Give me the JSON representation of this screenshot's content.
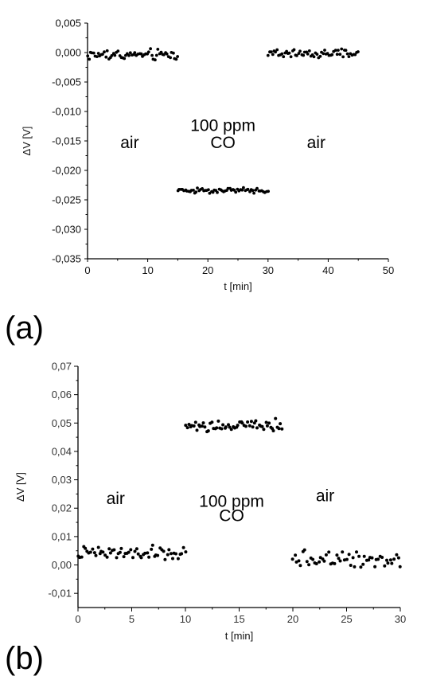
{
  "chart_data": [
    {
      "panel": "(a)",
      "type": "scatter",
      "xlabel": "t [min]",
      "ylabel": "ΔV [V]",
      "xlim": [
        0,
        50
      ],
      "ylim": [
        -0.035,
        0.005
      ],
      "x_ticks": [
        0,
        10,
        20,
        30,
        40,
        50
      ],
      "y_ticks": [
        0.005,
        0.0,
        -0.005,
        -0.01,
        -0.015,
        -0.02,
        -0.025,
        -0.03,
        -0.035
      ],
      "x_tick_labels": [
        "0",
        "10",
        "20",
        "30",
        "40",
        "50"
      ],
      "y_tick_labels": [
        "0,005",
        "0,000",
        "-0,005",
        "-0,010",
        "-0,015",
        "-0,020",
        "-0,025",
        "-0,030",
        "-0,035"
      ],
      "annotations": [
        {
          "text": "air",
          "x": 7,
          "y": -0.0162
        },
        {
          "text": "100 ppm",
          "x": 22.5,
          "y": -0.0133
        },
        {
          "text": "CO",
          "x": 22.5,
          "y": -0.0162
        },
        {
          "text": "air",
          "x": 38,
          "y": -0.0162
        }
      ],
      "segments": [
        {
          "x_start": 0,
          "x_end": 15,
          "mean": -0.0004,
          "noise": 0.0014,
          "n": 60
        },
        {
          "x_start": 15,
          "x_end": 30,
          "mean": -0.0234,
          "noise": 0.0007,
          "n": 60
        },
        {
          "x_start": 30,
          "x_end": 45,
          "mean": -0.0002,
          "noise": 0.001,
          "n": 60
        }
      ]
    },
    {
      "panel": "(b)",
      "type": "scatter",
      "xlabel": "t [min]",
      "ylabel": "ΔV [V]",
      "xlim": [
        0,
        30
      ],
      "ylim": [
        -0.015,
        0.07
      ],
      "x_ticks": [
        0,
        5,
        10,
        15,
        20,
        25,
        30
      ],
      "y_ticks": [
        0.07,
        0.06,
        0.05,
        0.04,
        0.03,
        0.02,
        0.01,
        0.0,
        -0.01
      ],
      "x_tick_labels": [
        "0",
        "5",
        "10",
        "15",
        "20",
        "25",
        "30"
      ],
      "y_tick_labels": [
        "0,07",
        "0,06",
        "0,05",
        "0,04",
        "0,03",
        "0,02",
        "0,01",
        "0,00",
        "-0,01"
      ],
      "annotations": [
        {
          "text": "air",
          "x": 3.5,
          "y": 0.0215
        },
        {
          "text": "100 ppm",
          "x": 14.3,
          "y": 0.0205
        },
        {
          "text": "CO",
          "x": 14.3,
          "y": 0.0155
        },
        {
          "text": "air",
          "x": 23,
          "y": 0.0225
        }
      ],
      "segments": [
        {
          "x_start": 0,
          "x_end": 10,
          "mean": 0.004,
          "noise": 0.0035,
          "n": 60
        },
        {
          "x_start": 10,
          "x_end": 19,
          "mean": 0.049,
          "noise": 0.0035,
          "n": 60
        },
        {
          "x_start": 20,
          "x_end": 30,
          "mean": 0.002,
          "noise": 0.004,
          "n": 55
        }
      ]
    }
  ]
}
